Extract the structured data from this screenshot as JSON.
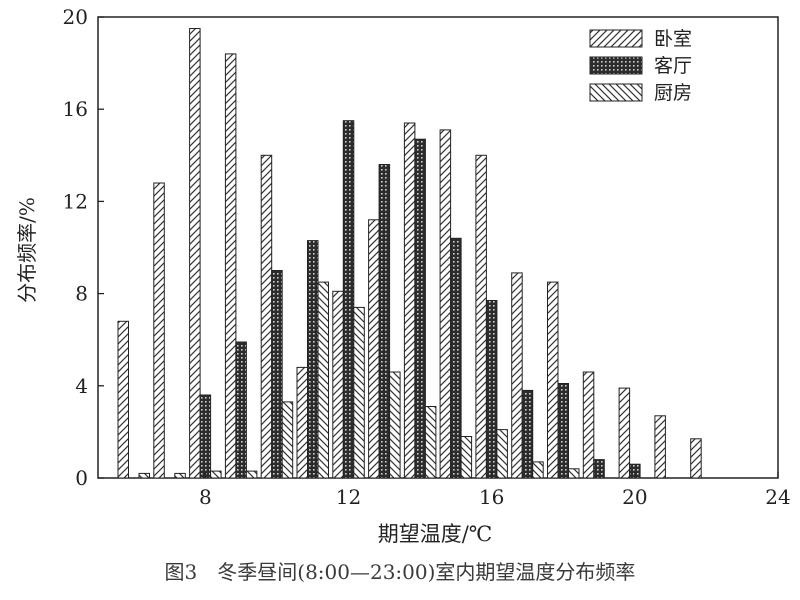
{
  "chart_data": {
    "type": "bar",
    "ylabel": "分布频率/%",
    "xlabel": "期望温度/℃",
    "caption": "图3　冬季昼间(8:00—23:00)室内期望温度分布频率",
    "xlim": [
      5,
      24
    ],
    "ylim": [
      0,
      20
    ],
    "xticks": [
      8,
      12,
      16,
      20,
      24
    ],
    "yticks": [
      0,
      4,
      8,
      12,
      16,
      20
    ],
    "grid": false,
    "legend_position": "top-right",
    "categories": [
      6,
      7,
      8,
      9,
      10,
      11,
      12,
      13,
      14,
      15,
      16,
      17,
      18,
      19,
      20,
      21,
      22
    ],
    "series": [
      {
        "name": "卧室",
        "pattern": "hatch-forward",
        "values": [
          6.8,
          12.8,
          19.5,
          18.4,
          14.0,
          4.8,
          8.1,
          11.2,
          15.4,
          15.1,
          14.0,
          8.9,
          8.5,
          4.6,
          3.9,
          2.7,
          1.7
        ]
      },
      {
        "name": "客厅",
        "pattern": "dots",
        "values": [
          0,
          0,
          3.6,
          5.9,
          9.0,
          10.3,
          15.5,
          13.6,
          14.7,
          10.4,
          7.7,
          3.8,
          4.1,
          0.8,
          0.6,
          0,
          0
        ]
      },
      {
        "name": "厨房",
        "pattern": "hatch-back",
        "values": [
          0.2,
          0.2,
          0.3,
          0.3,
          3.3,
          8.5,
          7.4,
          4.6,
          3.1,
          1.8,
          2.1,
          0.7,
          0.4,
          0,
          0,
          0,
          0
        ]
      }
    ]
  }
}
